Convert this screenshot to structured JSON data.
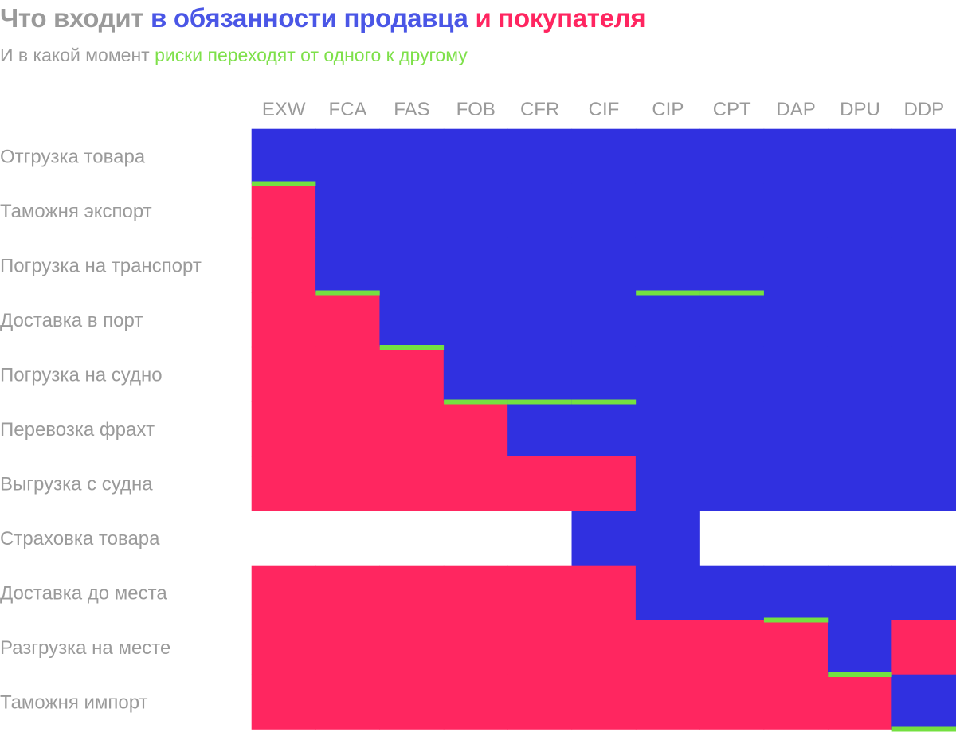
{
  "title": {
    "part1": "Что входит ",
    "part2": "в обязанности продавца",
    "part3": " ",
    "part4": "и покупателя",
    "color_neutral": "#9a9a9a",
    "color_seller": "#4a56e6",
    "color_buyer": "#ff2560"
  },
  "subtitle": {
    "part1": "И в какой момент ",
    "part2": "риски переходят от одного к другому",
    "color_neutral": "#9a9a9a",
    "color_risk": "#7ee04a"
  },
  "chart_data": {
    "type": "heatmap",
    "columns": [
      "EXW",
      "FCA",
      "FAS",
      "FOB",
      "CFR",
      "CIF",
      "CIP",
      "CPT",
      "DAP",
      "DPU",
      "DDP"
    ],
    "rows": [
      "Отгрузка товара",
      "Таможня экспорт",
      "Погрузка на транспорт",
      "Доставка в порт",
      "Погрузка на судно",
      "Перевозка фрахт",
      "Выгрузка с судна",
      "Страховка товара",
      "Доставка до места",
      "Разгрузка на месте",
      "Таможня импорт"
    ],
    "legend": {
      "S": "в обязанности продавца",
      "B": "и покупателя",
      "N": "",
      "risk": "риски переходят от одного к другому"
    },
    "colors": {
      "S": "#3030e0",
      "B": "#ff2660",
      "N": "#ffffff",
      "risk": "#74e040"
    },
    "cells": [
      [
        "S",
        "S",
        "S",
        "S",
        "S",
        "S",
        "S",
        "S",
        "S",
        "S",
        "S"
      ],
      [
        "B",
        "S",
        "S",
        "S",
        "S",
        "S",
        "S",
        "S",
        "S",
        "S",
        "S"
      ],
      [
        "B",
        "S",
        "S",
        "S",
        "S",
        "S",
        "S",
        "S",
        "S",
        "S",
        "S"
      ],
      [
        "B",
        "B",
        "S",
        "S",
        "S",
        "S",
        "S",
        "S",
        "S",
        "S",
        "S"
      ],
      [
        "B",
        "B",
        "B",
        "S",
        "S",
        "S",
        "S",
        "S",
        "S",
        "S",
        "S"
      ],
      [
        "B",
        "B",
        "B",
        "B",
        "S",
        "S",
        "S",
        "S",
        "S",
        "S",
        "S"
      ],
      [
        "B",
        "B",
        "B",
        "B",
        "B",
        "B",
        "S",
        "S",
        "S",
        "S",
        "S"
      ],
      [
        "N",
        "N",
        "N",
        "N",
        "N",
        "S",
        "S",
        "N",
        "N",
        "N",
        "N"
      ],
      [
        "B",
        "B",
        "B",
        "B",
        "B",
        "B",
        "S",
        "S",
        "S",
        "S",
        "S"
      ],
      [
        "B",
        "B",
        "B",
        "B",
        "B",
        "B",
        "B",
        "B",
        "B",
        "S",
        "B"
      ],
      [
        "B",
        "B",
        "B",
        "B",
        "B",
        "B",
        "B",
        "B",
        "B",
        "B",
        "S"
      ]
    ],
    "risk_transfer_row": [
      1,
      3,
      4,
      5,
      5,
      5,
      3,
      3,
      9,
      10,
      11
    ]
  }
}
